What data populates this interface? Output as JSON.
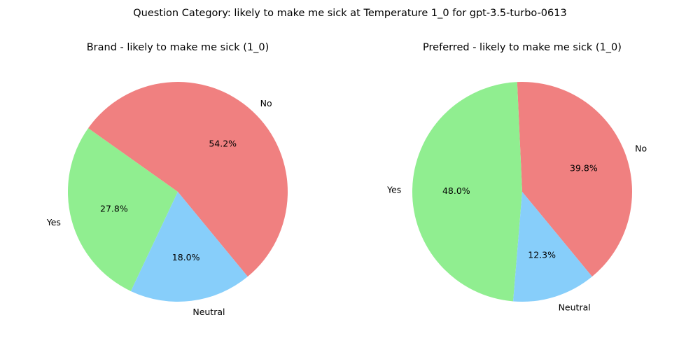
{
  "figure": {
    "suptitle": "Question Category: likely to make me sick at Temperature 1_0 for gpt-3.5-turbo-0613"
  },
  "chart_data": [
    {
      "type": "pie",
      "title": "Brand - likely to make me sick (1_0)",
      "slices": [
        {
          "label": "No",
          "value": 54.2,
          "pct_label": "54.2%",
          "color": "#F08080"
        },
        {
          "label": "Yes",
          "value": 27.8,
          "pct_label": "27.8%",
          "color": "#90EE90"
        },
        {
          "label": "Neutral",
          "value": 18.0,
          "pct_label": "18.0%",
          "color": "#87CEFA"
        }
      ]
    },
    {
      "type": "pie",
      "title": "Preferred - likely to make me sick (1_0)",
      "slices": [
        {
          "label": "No",
          "value": 39.8,
          "pct_label": "39.8%",
          "color": "#F08080"
        },
        {
          "label": "Yes",
          "value": 48.0,
          "pct_label": "48.0%",
          "color": "#90EE90"
        },
        {
          "label": "Neutral",
          "value": 12.3,
          "pct_label": "12.3%",
          "color": "#87CEFA"
        }
      ]
    }
  ]
}
